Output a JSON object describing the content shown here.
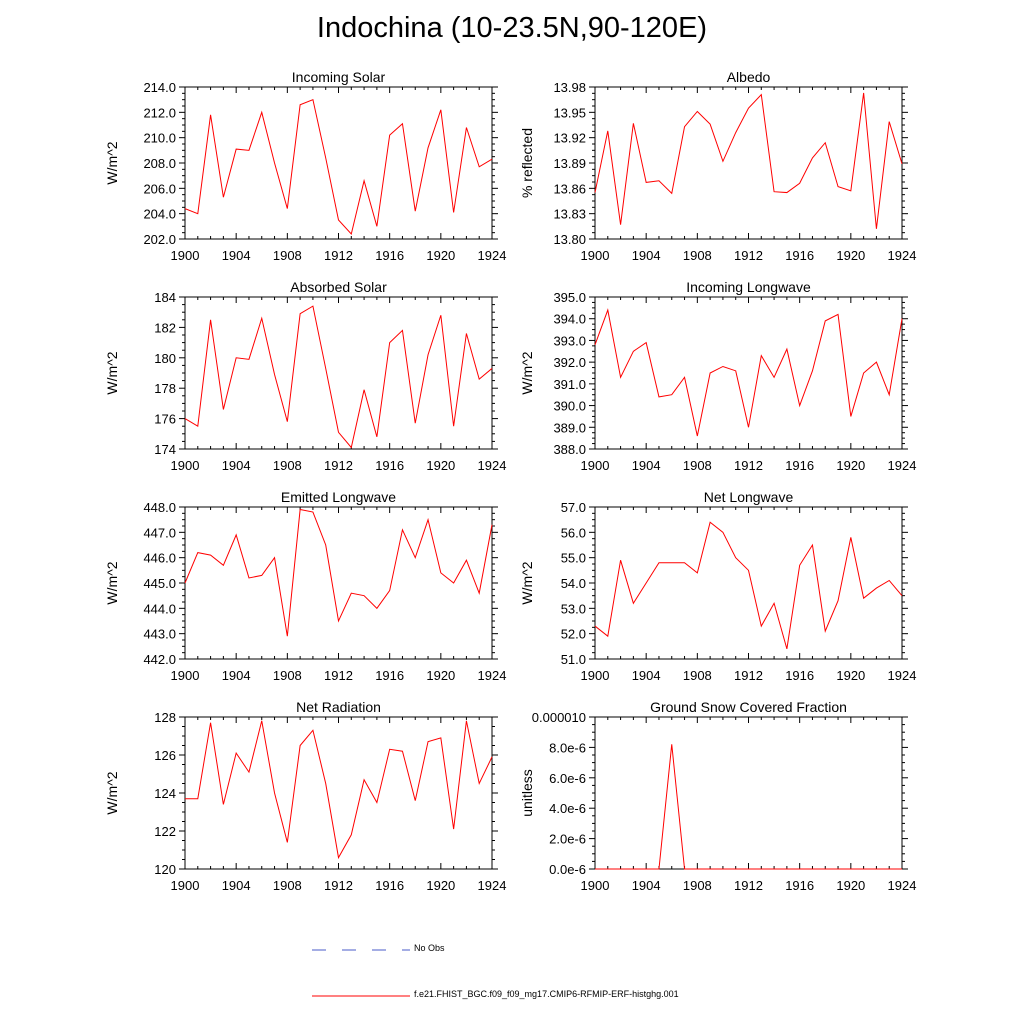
{
  "title": "Indochina (10-23.5N,90-120E)",
  "colors": {
    "model": "#ff0000",
    "obs": "#4a5bc9",
    "axis": "#000000"
  },
  "legend": [
    {
      "label": "No Obs",
      "style": "dashed",
      "color": "#4a5bc9"
    },
    {
      "label": "f.e21.FHIST_BGC.f09_f09_mg17.CMIP6-RFMIP-ERF-histghg.001",
      "style": "solid",
      "color": "#ff0000"
    }
  ],
  "chart_data": [
    {
      "type": "line",
      "title": "Incoming Solar",
      "ylabel": "W/m^2",
      "xlabel": "",
      "xlim": [
        1900,
        1924
      ],
      "ylim": [
        202.0,
        214.0
      ],
      "yticks": [
        "202.0",
        "204.0",
        "206.0",
        "208.0",
        "210.0",
        "212.0",
        "214.0"
      ],
      "xticks": [
        "1900",
        "1904",
        "1908",
        "1912",
        "1916",
        "1920",
        "1924"
      ],
      "x": [
        1900,
        1901,
        1902,
        1903,
        1904,
        1905,
        1906,
        1907,
        1908,
        1909,
        1910,
        1911,
        1912,
        1913,
        1914,
        1915,
        1916,
        1917,
        1918,
        1919,
        1920,
        1921,
        1922,
        1923,
        1924
      ],
      "series": [
        {
          "name": "f.e21.FHIST_BGC.f09_f09_mg17.CMIP6-RFMIP-ERF-histghg.001",
          "values": [
            204.4,
            204.0,
            211.8,
            205.3,
            209.1,
            209.0,
            212.0,
            208.0,
            204.4,
            212.6,
            213.0,
            208.4,
            203.5,
            202.4,
            206.6,
            203.0,
            210.2,
            211.1,
            204.2,
            209.2,
            212.2,
            204.1,
            210.8,
            207.7,
            208.3
          ]
        }
      ]
    },
    {
      "type": "line",
      "title": "Albedo",
      "ylabel": "% reflected",
      "xlabel": "",
      "xlim": [
        1900,
        1924
      ],
      "ylim": [
        13.8,
        13.98
      ],
      "yticks": [
        "13.80",
        "13.83",
        "13.86",
        "13.89",
        "13.92",
        "13.95",
        "13.98"
      ],
      "xticks": [
        "1900",
        "1904",
        "1908",
        "1912",
        "1916",
        "1920",
        "1924"
      ],
      "x": [
        1900,
        1901,
        1902,
        1903,
        1904,
        1905,
        1906,
        1907,
        1908,
        1909,
        1910,
        1911,
        1912,
        1913,
        1914,
        1915,
        1916,
        1917,
        1918,
        1919,
        1920,
        1921,
        1922,
        1923,
        1924
      ],
      "series": [
        {
          "name": "f.e21.FHIST_BGC.f09_f09_mg17.CMIP6-RFMIP-ERF-histghg.001",
          "values": [
            13.855,
            13.928,
            13.817,
            13.937,
            13.867,
            13.869,
            13.854,
            13.933,
            13.951,
            13.936,
            13.892,
            13.926,
            13.955,
            13.971,
            13.856,
            13.855,
            13.866,
            13.896,
            13.914,
            13.862,
            13.857,
            13.973,
            13.812,
            13.939,
            13.889
          ]
        }
      ]
    },
    {
      "type": "line",
      "title": "Absorbed Solar",
      "ylabel": "W/m^2",
      "xlabel": "",
      "xlim": [
        1900,
        1924
      ],
      "ylim": [
        174,
        184
      ],
      "yticks": [
        "174",
        "176",
        "178",
        "180",
        "182",
        "184"
      ],
      "xticks": [
        "1900",
        "1904",
        "1908",
        "1912",
        "1916",
        "1920",
        "1924"
      ],
      "x": [
        1900,
        1901,
        1902,
        1903,
        1904,
        1905,
        1906,
        1907,
        1908,
        1909,
        1910,
        1911,
        1912,
        1913,
        1914,
        1915,
        1916,
        1917,
        1918,
        1919,
        1920,
        1921,
        1922,
        1923,
        1924
      ],
      "series": [
        {
          "name": "f.e21.FHIST_BGC.f09_f09_mg17.CMIP6-RFMIP-ERF-histghg.001",
          "values": [
            176.0,
            175.5,
            182.5,
            176.6,
            180.0,
            179.9,
            182.6,
            178.9,
            175.8,
            182.9,
            183.4,
            179.3,
            175.1,
            174.1,
            177.9,
            174.8,
            181.0,
            181.8,
            175.7,
            180.2,
            182.8,
            175.5,
            181.6,
            178.6,
            179.3
          ]
        }
      ]
    },
    {
      "type": "line",
      "title": "Incoming Longwave",
      "ylabel": "W/m^2",
      "xlabel": "",
      "xlim": [
        1900,
        1924
      ],
      "ylim": [
        388.0,
        395.0
      ],
      "yticks": [
        "388.0",
        "389.0",
        "390.0",
        "391.0",
        "392.0",
        "393.0",
        "394.0",
        "395.0"
      ],
      "xticks": [
        "1900",
        "1904",
        "1908",
        "1912",
        "1916",
        "1920",
        "1924"
      ],
      "x": [
        1900,
        1901,
        1902,
        1903,
        1904,
        1905,
        1906,
        1907,
        1908,
        1909,
        1910,
        1911,
        1912,
        1913,
        1914,
        1915,
        1916,
        1917,
        1918,
        1919,
        1920,
        1921,
        1922,
        1923,
        1924
      ],
      "series": [
        {
          "name": "f.e21.FHIST_BGC.f09_f09_mg17.CMIP6-RFMIP-ERF-histghg.001",
          "values": [
            392.8,
            394.4,
            391.3,
            392.5,
            392.9,
            390.4,
            390.5,
            391.3,
            388.6,
            391.5,
            391.8,
            391.6,
            389.0,
            392.3,
            391.3,
            392.6,
            390.0,
            391.6,
            393.9,
            394.2,
            389.5,
            391.5,
            392.0,
            390.5,
            394.0
          ]
        }
      ]
    },
    {
      "type": "line",
      "title": "Emitted Longwave",
      "ylabel": "W/m^2",
      "xlabel": "",
      "xlim": [
        1900,
        1924
      ],
      "ylim": [
        442.0,
        448.0
      ],
      "yticks": [
        "442.0",
        "443.0",
        "444.0",
        "445.0",
        "446.0",
        "447.0",
        "448.0"
      ],
      "xticks": [
        "1900",
        "1904",
        "1908",
        "1912",
        "1916",
        "1920",
        "1924"
      ],
      "x": [
        1900,
        1901,
        1902,
        1903,
        1904,
        1905,
        1906,
        1907,
        1908,
        1909,
        1910,
        1911,
        1912,
        1913,
        1914,
        1915,
        1916,
        1917,
        1918,
        1919,
        1920,
        1921,
        1922,
        1923,
        1924
      ],
      "series": [
        {
          "name": "f.e21.FHIST_BGC.f09_f09_mg17.CMIP6-RFMIP-ERF-histghg.001",
          "values": [
            445.0,
            446.2,
            446.1,
            445.7,
            446.9,
            445.2,
            445.3,
            446.0,
            442.9,
            447.9,
            447.8,
            446.5,
            443.5,
            444.6,
            444.5,
            444.0,
            444.7,
            447.1,
            446.0,
            447.5,
            445.4,
            445.0,
            445.9,
            444.6,
            447.3
          ]
        }
      ]
    },
    {
      "type": "line",
      "title": "Net Longwave",
      "ylabel": "W/m^2",
      "xlabel": "",
      "xlim": [
        1900,
        1924
      ],
      "ylim": [
        51.0,
        57.0
      ],
      "yticks": [
        "51.0",
        "52.0",
        "53.0",
        "54.0",
        "55.0",
        "56.0",
        "57.0"
      ],
      "xticks": [
        "1900",
        "1904",
        "1908",
        "1912",
        "1916",
        "1920",
        "1924"
      ],
      "x": [
        1900,
        1901,
        1902,
        1903,
        1904,
        1905,
        1906,
        1907,
        1908,
        1909,
        1910,
        1911,
        1912,
        1913,
        1914,
        1915,
        1916,
        1917,
        1918,
        1919,
        1920,
        1921,
        1922,
        1923,
        1924
      ],
      "series": [
        {
          "name": "f.e21.FHIST_BGC.f09_f09_mg17.CMIP6-RFMIP-ERF-histghg.001",
          "values": [
            52.3,
            51.9,
            54.9,
            53.2,
            54.0,
            54.8,
            54.8,
            54.8,
            54.4,
            56.4,
            56.0,
            55.0,
            54.5,
            52.3,
            53.2,
            51.4,
            54.7,
            55.5,
            52.1,
            53.3,
            55.8,
            53.4,
            53.8,
            54.1,
            53.5
          ]
        }
      ]
    },
    {
      "type": "line",
      "title": "Net Radiation",
      "ylabel": "W/m^2",
      "xlabel": "",
      "xlim": [
        1900,
        1924
      ],
      "ylim": [
        120,
        128
      ],
      "yticks": [
        "120",
        "122",
        "124",
        "126",
        "128"
      ],
      "xticks": [
        "1900",
        "1904",
        "1908",
        "1912",
        "1916",
        "1920",
        "1924"
      ],
      "x": [
        1900,
        1901,
        1902,
        1903,
        1904,
        1905,
        1906,
        1907,
        1908,
        1909,
        1910,
        1911,
        1912,
        1913,
        1914,
        1915,
        1916,
        1917,
        1918,
        1919,
        1920,
        1921,
        1922,
        1923,
        1924
      ],
      "series": [
        {
          "name": "f.e21.FHIST_BGC.f09_f09_mg17.CMIP6-RFMIP-ERF-histghg.001",
          "values": [
            123.7,
            123.7,
            127.7,
            123.4,
            126.1,
            125.1,
            127.8,
            124.0,
            121.4,
            126.5,
            127.3,
            124.5,
            120.6,
            121.8,
            124.7,
            123.5,
            126.3,
            126.2,
            123.6,
            126.7,
            126.9,
            122.1,
            127.8,
            124.5,
            125.9
          ]
        }
      ]
    },
    {
      "type": "line",
      "title": "Ground Snow Covered Fraction",
      "ylabel": "unitless",
      "xlabel": "",
      "xlim": [
        1900,
        1924
      ],
      "ylim": [
        0,
        1e-05
      ],
      "yticks": [
        "0.0e-6",
        "2.0e-6",
        "4.0e-6",
        "6.0e-6",
        "8.0e-6",
        "0.000010"
      ],
      "xticks": [
        "1900",
        "1904",
        "1908",
        "1912",
        "1916",
        "1920",
        "1924"
      ],
      "x": [
        1900,
        1901,
        1902,
        1903,
        1904,
        1905,
        1906,
        1907,
        1908,
        1909,
        1910,
        1911,
        1912,
        1913,
        1914,
        1915,
        1916,
        1917,
        1918,
        1919,
        1920,
        1921,
        1922,
        1923,
        1924
      ],
      "series": [
        {
          "name": "f.e21.FHIST_BGC.f09_f09_mg17.CMIP6-RFMIP-ERF-histghg.001",
          "values": [
            0,
            0,
            0,
            0,
            0,
            0,
            8.2e-06,
            0,
            0,
            0,
            0,
            0,
            0,
            0,
            0,
            0,
            0,
            0,
            0,
            0,
            0,
            0,
            0,
            0,
            0
          ]
        }
      ]
    }
  ]
}
